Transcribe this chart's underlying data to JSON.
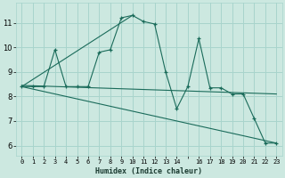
{
  "xlabel": "Humidex (Indice chaleur)",
  "bg_color": "#cce8e0",
  "grid_color": "#a8d4cc",
  "line_color": "#1a6b5a",
  "x_data": [
    0,
    1,
    2,
    3,
    4,
    5,
    6,
    7,
    8,
    9,
    10,
    11,
    12,
    13,
    14,
    15,
    16,
    17,
    18,
    19,
    20,
    21,
    22,
    23
  ],
  "y_main": [
    8.4,
    8.4,
    8.4,
    9.9,
    8.4,
    8.4,
    8.4,
    9.8,
    9.9,
    11.2,
    11.3,
    11.05,
    10.95,
    9.0,
    7.5,
    8.4,
    10.35,
    8.35,
    8.35,
    8.1,
    8.1,
    7.1,
    6.1,
    6.1
  ],
  "ylim": [
    5.6,
    11.8
  ],
  "xlim": [
    -0.5,
    23.5
  ],
  "yticks": [
    6,
    7,
    8,
    9,
    10,
    11
  ],
  "xticks": [
    0,
    1,
    2,
    3,
    4,
    5,
    6,
    7,
    8,
    9,
    10,
    11,
    12,
    13,
    14,
    15,
    16,
    17,
    18,
    19,
    20,
    21,
    22,
    23
  ],
  "xtick_labels": [
    "0",
    "1",
    "2",
    "3",
    "4",
    "5",
    "6",
    "7",
    "8",
    "9",
    "10",
    "11",
    "12",
    "13",
    "14",
    "",
    "16",
    "17",
    "18",
    "19",
    "20",
    "21",
    "22",
    "23"
  ],
  "line1_x": [
    0,
    10
  ],
  "line1_y": [
    8.4,
    11.3
  ],
  "line2_x": [
    0,
    23
  ],
  "line2_y": [
    8.4,
    6.1
  ],
  "line3_x": [
    0,
    23
  ],
  "line3_y": [
    8.45,
    8.1
  ]
}
